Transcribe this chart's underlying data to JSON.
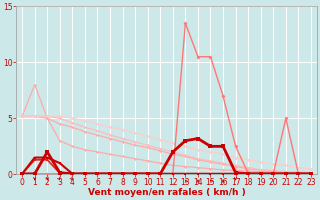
{
  "bg_color": "#cce8e8",
  "grid_color": "#ffffff",
  "xlabel": "Vent moyen/en rafales ( km/h )",
  "xlabel_color": "#cc0000",
  "xlabel_fontsize": 6.5,
  "tick_color": "#cc0000",
  "tick_fontsize": 5.5,
  "xlim": [
    -0.5,
    23.5
  ],
  "ylim": [
    0,
    15
  ],
  "yticks": [
    0,
    5,
    10,
    15
  ],
  "xticks": [
    0,
    1,
    2,
    3,
    4,
    5,
    6,
    7,
    8,
    9,
    10,
    11,
    12,
    13,
    14,
    15,
    16,
    17,
    18,
    19,
    20,
    21,
    22,
    23
  ],
  "lines": [
    {
      "x": [
        0,
        1,
        2,
        3,
        4,
        5,
        6,
        7,
        8,
        9,
        10,
        11,
        12,
        13,
        14,
        15,
        16,
        17,
        18,
        19,
        20,
        21,
        22,
        23
      ],
      "y": [
        5.2,
        5.2,
        5.0,
        4.5,
        4.2,
        3.8,
        3.5,
        3.2,
        2.9,
        2.6,
        2.4,
        2.1,
        1.8,
        1.6,
        1.3,
        1.1,
        0.9,
        0.7,
        0.5,
        0.4,
        0.3,
        0.2,
        0.15,
        0.1
      ],
      "color": "#ffaaaa",
      "lw": 0.9,
      "marker": "D",
      "ms": 1.5
    },
    {
      "x": [
        0,
        1,
        2,
        3,
        4,
        5,
        6,
        7,
        8,
        9,
        10,
        11,
        12,
        13,
        14,
        15,
        16,
        17,
        18,
        19,
        20,
        21,
        22,
        23
      ],
      "y": [
        5.2,
        5.2,
        5.2,
        5.0,
        4.6,
        4.2,
        3.9,
        3.5,
        3.2,
        2.9,
        2.6,
        2.3,
        2.0,
        1.7,
        1.4,
        1.2,
        1.0,
        0.8,
        0.6,
        0.4,
        0.3,
        0.25,
        0.2,
        0.15
      ],
      "color": "#ffbbbb",
      "lw": 0.9,
      "marker": "D",
      "ms": 1.5
    },
    {
      "x": [
        0,
        1,
        2,
        3,
        4,
        5,
        6,
        7,
        8,
        9,
        10,
        11,
        12,
        13,
        14,
        15,
        16,
        17,
        18,
        19,
        20,
        21,
        22,
        23
      ],
      "y": [
        5.2,
        8.0,
        5.0,
        3.0,
        2.5,
        2.2,
        2.0,
        1.8,
        1.6,
        1.4,
        1.2,
        1.0,
        0.8,
        0.7,
        0.6,
        0.5,
        0.4,
        0.35,
        0.3,
        0.25,
        0.2,
        0.15,
        0.1,
        0.05
      ],
      "color": "#ffaaaa",
      "lw": 0.9,
      "marker": "D",
      "ms": 1.5
    },
    {
      "x": [
        0,
        1,
        2,
        3,
        4,
        5,
        6,
        7,
        8,
        9,
        10,
        11,
        12,
        13,
        14,
        15,
        16,
        17,
        18,
        19,
        20,
        21,
        22,
        23
      ],
      "y": [
        5.2,
        5.2,
        5.2,
        5.2,
        5.0,
        4.8,
        4.5,
        4.2,
        4.0,
        3.7,
        3.4,
        3.1,
        2.8,
        2.5,
        2.2,
        2.0,
        1.8,
        1.5,
        1.3,
        1.1,
        0.9,
        0.8,
        0.6,
        0.5
      ],
      "color": "#ffcccc",
      "lw": 0.9,
      "marker": "D",
      "ms": 1.5
    },
    {
      "x": [
        0,
        1,
        2,
        3,
        4,
        5,
        6,
        7,
        8,
        9,
        10,
        11,
        12,
        13,
        14,
        15,
        16,
        17,
        18,
        19,
        20,
        21,
        22,
        23
      ],
      "y": [
        0.05,
        0.05,
        0.05,
        0.05,
        0.05,
        0.05,
        0.05,
        0.05,
        0.05,
        0.05,
        0.05,
        0.05,
        0.05,
        13.5,
        10.5,
        10.5,
        7.0,
        2.5,
        0.1,
        0.05,
        0.05,
        5.0,
        0.05,
        0.05
      ],
      "color": "#ff7777",
      "lw": 1.0,
      "marker": "D",
      "ms": 2.0
    },
    {
      "x": [
        0,
        1,
        2,
        3,
        4,
        5,
        6,
        7,
        8,
        9,
        10,
        11,
        12,
        13,
        14,
        15,
        16,
        17,
        18,
        19,
        20,
        21,
        22,
        23
      ],
      "y": [
        0.05,
        1.3,
        1.3,
        0.1,
        0.05,
        0.05,
        0.05,
        0.05,
        0.05,
        0.05,
        0.05,
        0.05,
        0.05,
        0.05,
        0.05,
        0.05,
        0.05,
        0.05,
        0.05,
        0.05,
        0.05,
        0.05,
        0.05,
        0.05
      ],
      "color": "#dd2222",
      "lw": 1.2,
      "marker": "s",
      "ms": 2.0
    },
    {
      "x": [
        0,
        1,
        2,
        3,
        4,
        5,
        6,
        7,
        8,
        9,
        10,
        11,
        12,
        13,
        14,
        15,
        16,
        17,
        18,
        19,
        20,
        21,
        22,
        23
      ],
      "y": [
        0.05,
        1.5,
        1.5,
        1.0,
        0.05,
        0.05,
        0.05,
        0.05,
        0.05,
        0.05,
        0.05,
        0.05,
        0.05,
        0.05,
        0.05,
        0.05,
        0.05,
        0.05,
        0.05,
        0.05,
        0.05,
        0.05,
        0.05,
        0.05
      ],
      "color": "#cc0000",
      "lw": 1.5,
      "marker": "s",
      "ms": 2.0
    },
    {
      "x": [
        0,
        1,
        2,
        3,
        4,
        5,
        6,
        7,
        8,
        9,
        10,
        11,
        12,
        13,
        14,
        15,
        16,
        17,
        18,
        19,
        20,
        21,
        22,
        23
      ],
      "y": [
        0.05,
        0.05,
        2.0,
        0.15,
        0.05,
        0.05,
        0.05,
        0.05,
        0.05,
        0.05,
        0.05,
        0.05,
        2.0,
        3.0,
        3.2,
        2.5,
        2.5,
        0.15,
        0.05,
        0.05,
        0.05,
        0.05,
        0.05,
        0.05
      ],
      "color": "#cc0000",
      "lw": 2.0,
      "marker": "s",
      "ms": 2.5
    }
  ]
}
